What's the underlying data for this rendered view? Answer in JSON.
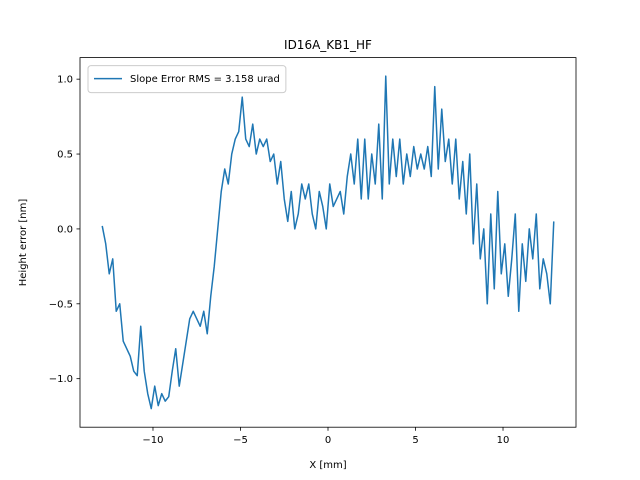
{
  "chart_data": {
    "type": "line",
    "title": "ID16A_KB1_HF",
    "x_label": "X [mm]",
    "y_label": "Height error [nm]",
    "xlim": [
      -14.17,
      14.17
    ],
    "ylim": [
      -1.324,
      1.144
    ],
    "xticks": [
      {
        "value": -10,
        "label": "−10"
      },
      {
        "value": -5,
        "label": "−5"
      },
      0,
      5,
      10
    ],
    "yticks": [
      {
        "value": -1.0,
        "label": "−1.0"
      },
      {
        "value": -0.5,
        "label": "−0.5"
      },
      {
        "value": 0.0,
        "label": "0.0"
      },
      {
        "value": 0.5,
        "label": "0.5"
      },
      {
        "value": 1.0,
        "label": "1.0"
      }
    ],
    "legend": "upper left",
    "x": [
      -12.9,
      -12.7,
      -12.5,
      -12.3,
      -12.1,
      -11.9,
      -11.7,
      -11.5,
      -11.3,
      -11.1,
      -10.9,
      -10.7,
      -10.5,
      -10.3,
      -10.1,
      -9.9,
      -9.7,
      -9.5,
      -9.3,
      -9.1,
      -8.9,
      -8.7,
      -8.5,
      -8.3,
      -8.1,
      -7.9,
      -7.7,
      -7.5,
      -7.3,
      -7.1,
      -6.9,
      -6.7,
      -6.5,
      -6.3,
      -6.1,
      -5.9,
      -5.7,
      -5.5,
      -5.3,
      -5.1,
      -4.9,
      -4.7,
      -4.5,
      -4.3,
      -4.1,
      -3.9,
      -3.7,
      -3.5,
      -3.3,
      -3.1,
      -2.9,
      -2.7,
      -2.5,
      -2.3,
      -2.1,
      -1.9,
      -1.7,
      -1.5,
      -1.3,
      -1.1,
      -0.9,
      -0.7,
      -0.5,
      -0.3,
      -0.1,
      0.1,
      0.3,
      0.5,
      0.7,
      0.9,
      1.1,
      1.3,
      1.5,
      1.7,
      1.9,
      2.1,
      2.3,
      2.5,
      2.7,
      2.9,
      3.1,
      3.3,
      3.5,
      3.7,
      3.9,
      4.1,
      4.3,
      4.5,
      4.7,
      4.9,
      5.1,
      5.3,
      5.5,
      5.7,
      5.9,
      6.1,
      6.3,
      6.5,
      6.7,
      6.9,
      7.1,
      7.3,
      7.5,
      7.7,
      7.9,
      8.1,
      8.3,
      8.5,
      8.7,
      8.9,
      9.1,
      9.3,
      9.5,
      9.7,
      9.9,
      10.1,
      10.3,
      10.5,
      10.7,
      10.9,
      11.1,
      11.3,
      11.5,
      11.7,
      11.9,
      12.1,
      12.3,
      12.5,
      12.7,
      12.9
    ],
    "series": [
      {
        "name": "Slope Error RMS = 3.158 urad",
        "color": "#1f77b4",
        "values": [
          0.02,
          -0.1,
          -0.3,
          -0.2,
          -0.55,
          -0.5,
          -0.75,
          -0.8,
          -0.85,
          -0.95,
          -0.98,
          -0.65,
          -0.95,
          -1.1,
          -1.2,
          -1.05,
          -1.18,
          -1.1,
          -1.15,
          -1.12,
          -0.95,
          -0.8,
          -1.05,
          -0.9,
          -0.75,
          -0.6,
          -0.55,
          -0.6,
          -0.65,
          -0.55,
          -0.7,
          -0.45,
          -0.25,
          0.0,
          0.25,
          0.4,
          0.3,
          0.5,
          0.6,
          0.65,
          0.88,
          0.6,
          0.55,
          0.7,
          0.5,
          0.6,
          0.55,
          0.6,
          0.45,
          0.5,
          0.3,
          0.45,
          0.2,
          0.05,
          0.25,
          0.0,
          0.1,
          0.3,
          0.2,
          0.3,
          0.1,
          0.0,
          0.25,
          0.15,
          0.0,
          0.3,
          0.15,
          0.2,
          0.25,
          0.1,
          0.35,
          0.5,
          0.3,
          0.6,
          0.2,
          0.6,
          0.2,
          0.5,
          0.3,
          0.7,
          0.2,
          1.02,
          0.3,
          0.6,
          0.35,
          0.6,
          0.3,
          0.5,
          0.35,
          0.55,
          0.4,
          0.5,
          0.4,
          0.55,
          0.35,
          0.95,
          0.4,
          0.8,
          0.45,
          0.6,
          0.3,
          0.6,
          0.2,
          0.45,
          0.1,
          0.5,
          -0.1,
          0.3,
          -0.2,
          0.0,
          -0.5,
          0.1,
          -0.4,
          0.25,
          -0.3,
          -0.1,
          -0.45,
          -0.2,
          0.1,
          -0.55,
          -0.1,
          -0.35,
          0.0,
          -0.2,
          0.1,
          -0.4,
          -0.2,
          -0.3,
          -0.5,
          0.05
        ]
      }
    ]
  }
}
